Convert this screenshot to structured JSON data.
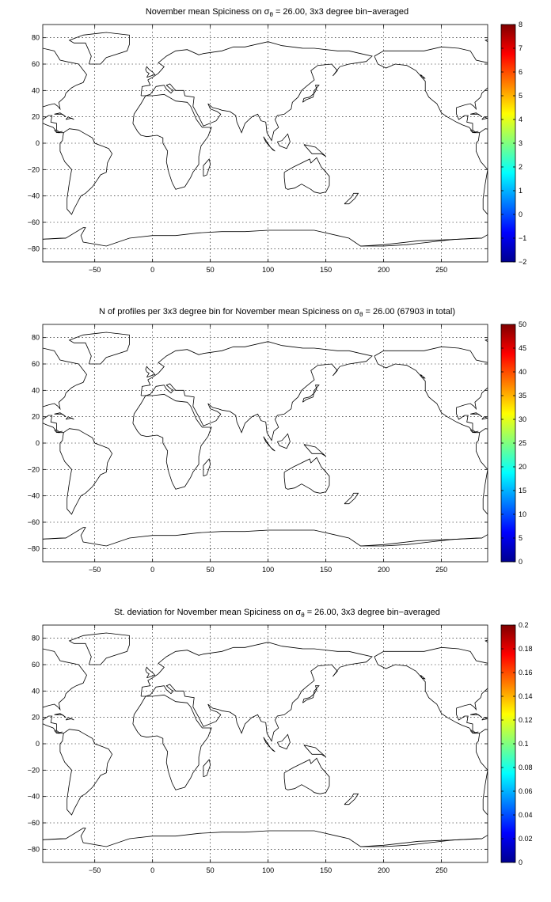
{
  "chart_data": [
    {
      "type": "heatmap",
      "title_parts": {
        "pre": "November mean Spiciness on ",
        "sym": "σ",
        "sub": "θ",
        "post": " = 26.00, 3x3 degree bin−averaged"
      },
      "xlim": [
        -95,
        290
      ],
      "ylim": [
        -90,
        90
      ],
      "xticks": [
        -50,
        0,
        50,
        100,
        150,
        200,
        250
      ],
      "yticks": [
        -80,
        -60,
        -40,
        -20,
        0,
        20,
        40,
        60,
        80
      ],
      "grid": true,
      "colorbar": {
        "min": -2,
        "max": 8,
        "ticks": [
          -2,
          -1,
          0,
          1,
          2,
          3,
          4,
          5,
          6,
          7,
          8
        ]
      },
      "colormap": "jet"
    },
    {
      "type": "heatmap",
      "title_parts": {
        "pre": "N of profiles per 3x3 degree bin for November mean Spiciness on ",
        "sym": "σ",
        "sub": "θ",
        "post": " = 26.00 (67903 in total)"
      },
      "total_profiles": 67903,
      "xlim": [
        -95,
        290
      ],
      "ylim": [
        -90,
        90
      ],
      "xticks": [
        -50,
        0,
        50,
        100,
        150,
        200,
        250
      ],
      "yticks": [
        -80,
        -60,
        -40,
        -20,
        0,
        20,
        40,
        60,
        80
      ],
      "grid": true,
      "colorbar": {
        "min": 0,
        "max": 50,
        "ticks": [
          0,
          5,
          10,
          15,
          20,
          25,
          30,
          35,
          40,
          45,
          50
        ]
      },
      "colormap": "jet"
    },
    {
      "type": "heatmap",
      "title_parts": {
        "pre": "St. deviation for November mean Spiciness on ",
        "sym": "σ",
        "sub": "θ",
        "post": " = 26.00, 3x3 degree bin−averaged"
      },
      "xlim": [
        -95,
        290
      ],
      "ylim": [
        -90,
        90
      ],
      "xticks": [
        -50,
        0,
        50,
        100,
        150,
        200,
        250
      ],
      "yticks": [
        -80,
        -60,
        -40,
        -20,
        0,
        20,
        40,
        60,
        80
      ],
      "grid": true,
      "colorbar": {
        "min": 0,
        "max": 0.2,
        "ticks": [
          0,
          0.02,
          0.04,
          0.06,
          0.08,
          0.1,
          0.12,
          0.14,
          0.16,
          0.18,
          0.2
        ]
      },
      "colormap": "jet"
    }
  ]
}
